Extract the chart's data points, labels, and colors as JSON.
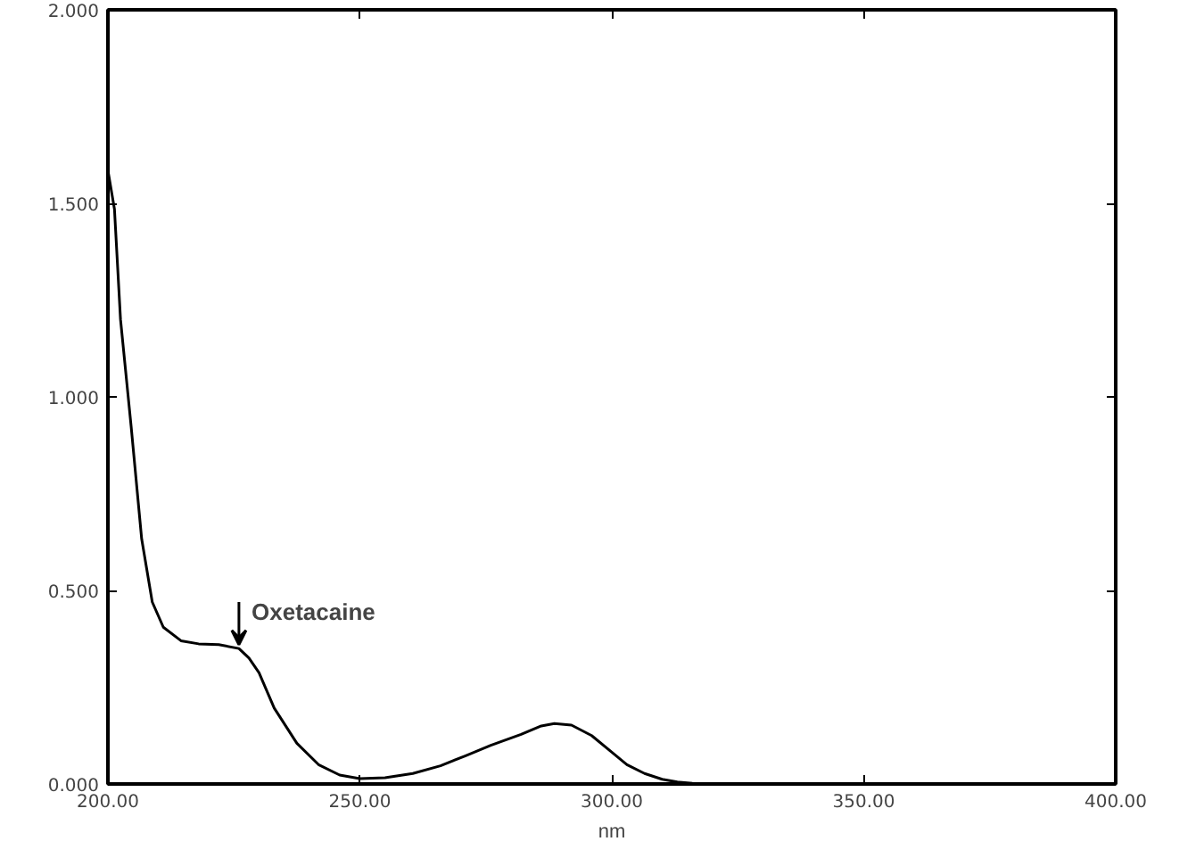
{
  "chart_data": {
    "type": "line",
    "xlabel": "nm",
    "x": [
      200,
      201.3,
      202.5,
      204.6,
      206.7,
      208.8,
      211,
      214.5,
      218,
      222,
      226,
      228,
      230,
      233,
      237.5,
      241.8,
      246,
      250,
      255,
      260.5,
      266,
      271,
      276,
      282,
      286,
      288.6,
      292,
      296,
      300,
      303,
      306.5,
      310,
      313,
      316,
      320,
      340,
      360,
      380,
      400
    ],
    "series": [
      {
        "color": "#000000",
        "values": [
          1.585,
          1.485,
          1.2,
          0.925,
          0.633,
          0.47,
          0.405,
          0.37,
          0.362,
          0.36,
          0.35,
          0.325,
          0.287,
          0.196,
          0.105,
          0.05,
          0.023,
          0.014,
          0.016,
          0.027,
          0.047,
          0.073,
          0.1,
          0.128,
          0.15,
          0.156,
          0.152,
          0.125,
          0.082,
          0.05,
          0.027,
          0.012,
          0.005,
          0.002,
          0,
          0,
          0,
          0,
          0
        ]
      }
    ],
    "annotations": [
      {
        "text": "Oxetacaine",
        "x": 226,
        "y": 0.35
      }
    ],
    "xlim": [
      200,
      400
    ],
    "ylim": [
      0,
      2
    ],
    "xticks": [
      {
        "value": 200,
        "label": "200.00"
      },
      {
        "value": 250,
        "label": "250.00"
      },
      {
        "value": 300,
        "label": "300.00"
      },
      {
        "value": 350,
        "label": "350.00"
      },
      {
        "value": 400,
        "label": "400.00"
      }
    ],
    "yticks": [
      {
        "value": 0,
        "label": "0.000"
      },
      {
        "value": 0.5,
        "label": "0.500"
      },
      {
        "value": 1,
        "label": "1.000"
      },
      {
        "value": 1.5,
        "label": "1.500"
      },
      {
        "value": 2,
        "label": "2.000"
      }
    ],
    "grid": false
  }
}
